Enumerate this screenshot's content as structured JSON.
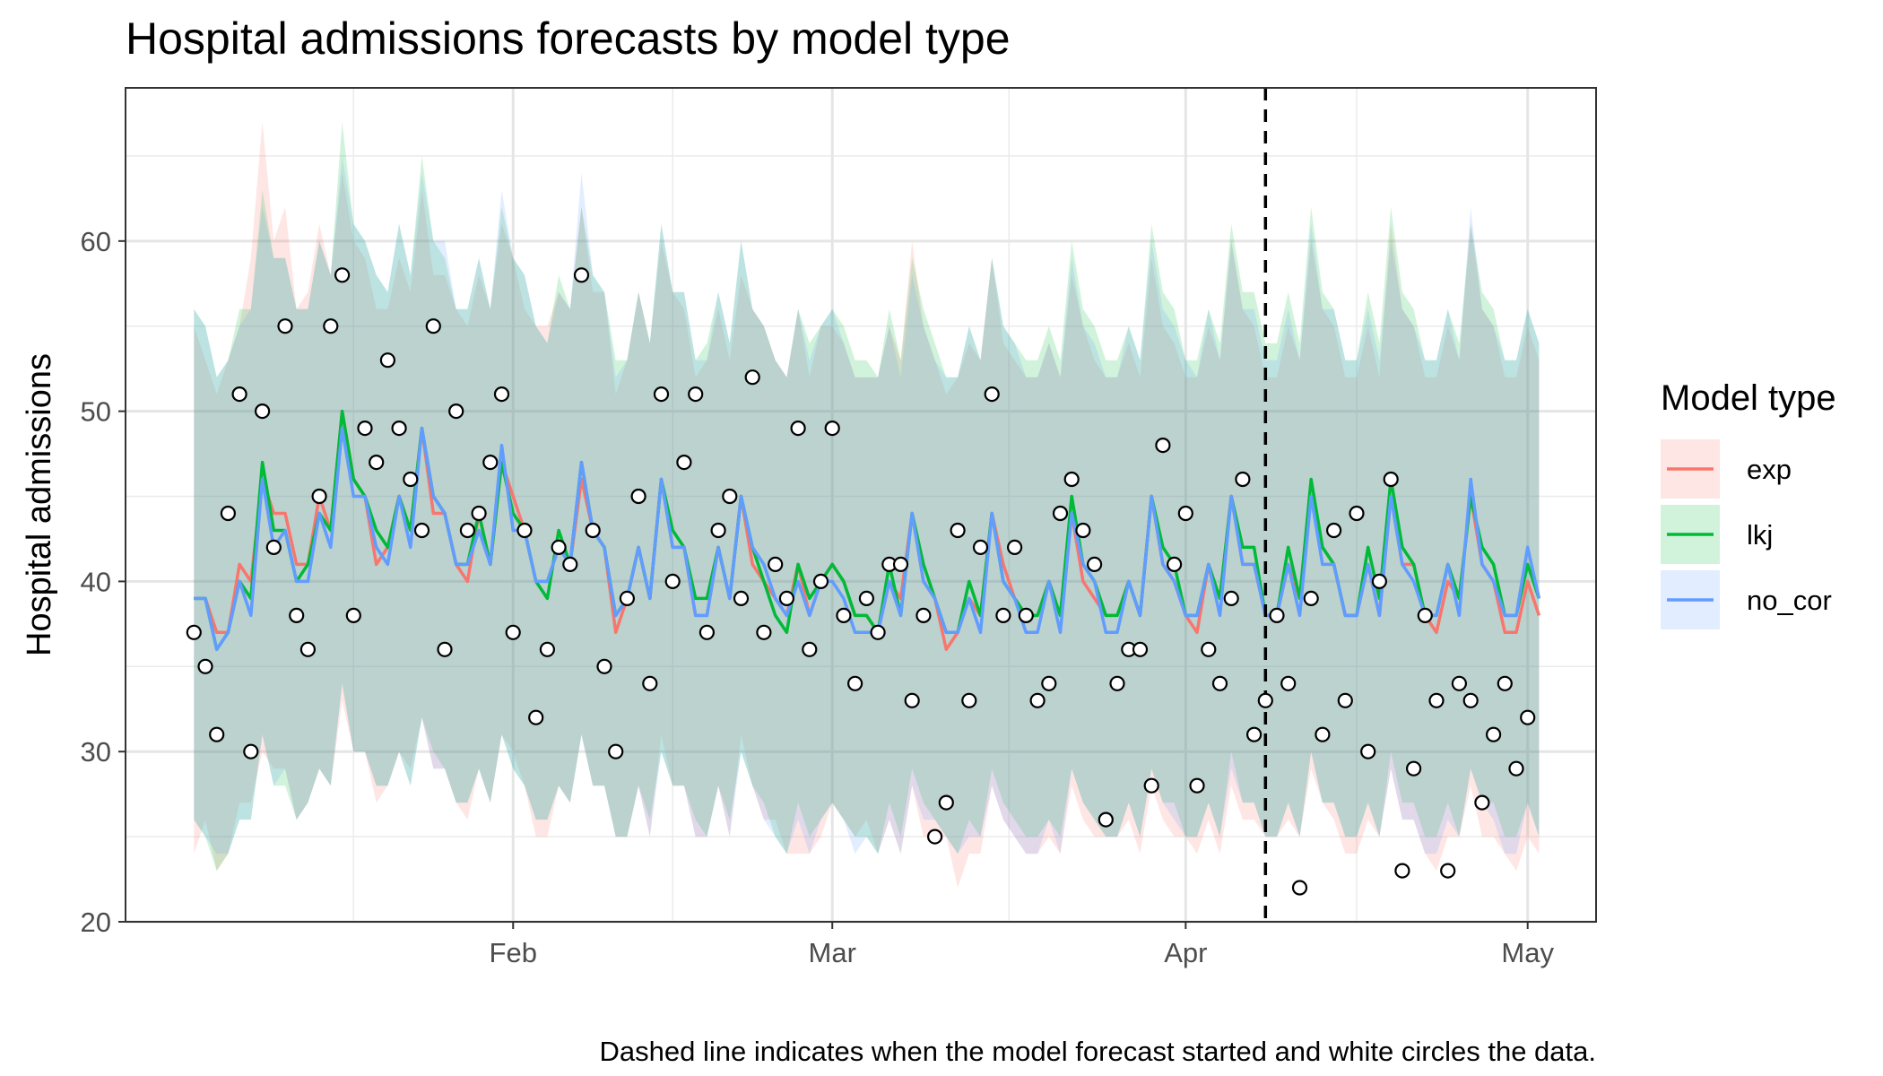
{
  "chart_data": {
    "type": "line",
    "title": "Hospital admissions forecasts by model type",
    "caption": "Dashed line indicates when the model forecast started and white circles the data.",
    "xlabel": "",
    "ylabel": "Hospital admissions",
    "x_start": "2021-01-04",
    "xlim": [
      "2020-12-29",
      "2021-05-07"
    ],
    "ylim": [
      20,
      69
    ],
    "x_ticks": [
      {
        "date": "2021-02-01",
        "label": "Feb"
      },
      {
        "date": "2021-03-01",
        "label": "Mar"
      },
      {
        "date": "2021-04-01",
        "label": "Apr"
      },
      {
        "date": "2021-05-01",
        "label": "May"
      }
    ],
    "y_ticks": [
      20,
      30,
      40,
      50,
      60
    ],
    "grid": true,
    "forecast_start": "2021-04-08",
    "legend": {
      "title": "Model type",
      "position": "right"
    },
    "observed": {
      "color": "#ffffff",
      "values": [
        37,
        35,
        31,
        44,
        51,
        30,
        50,
        42,
        55,
        38,
        36,
        45,
        55,
        58,
        38,
        49,
        47,
        53,
        49,
        46,
        43,
        55,
        36,
        50,
        43,
        44,
        47,
        51,
        37,
        43,
        32,
        36,
        42,
        41,
        58,
        43,
        35,
        30,
        39,
        45,
        34,
        51,
        40,
        47,
        51,
        37,
        43,
        45,
        39,
        52,
        37,
        41,
        39,
        49,
        36,
        40,
        49,
        38,
        34,
        39,
        37,
        41,
        41,
        33,
        38,
        25,
        27,
        43,
        33,
        42,
        51,
        38,
        42,
        38,
        33,
        34,
        44,
        46,
        43,
        41,
        26,
        34,
        36,
        36,
        28,
        48,
        41,
        44,
        28,
        36,
        34,
        39,
        46,
        31,
        33,
        38,
        34,
        22,
        39,
        31,
        43,
        33,
        44,
        30,
        40,
        46,
        23,
        29,
        38,
        33,
        23,
        34,
        33,
        27,
        31,
        34,
        29,
        32
      ]
    },
    "series": [
      {
        "name": "exp",
        "color": "#F8766D",
        "median": [
          39,
          39,
          37,
          37,
          41,
          40,
          46,
          44,
          44,
          41,
          41,
          45,
          43,
          50,
          46,
          45,
          41,
          42,
          45,
          43,
          49,
          44,
          44,
          41,
          40,
          44,
          41,
          47,
          45,
          43,
          40,
          40,
          42,
          41,
          46,
          43,
          42,
          37,
          39,
          42,
          39,
          46,
          42,
          42,
          38,
          38,
          42,
          39,
          45,
          41,
          40,
          39,
          38,
          41,
          38,
          40,
          41,
          40,
          38,
          38,
          37,
          40,
          39,
          44,
          40,
          39,
          36,
          37,
          39,
          38,
          44,
          41,
          39,
          38,
          38,
          40,
          38,
          44,
          40,
          39,
          38,
          38,
          40,
          38,
          45,
          41,
          40,
          38,
          37,
          41,
          39,
          45,
          41,
          41,
          38,
          38,
          41,
          39,
          45,
          42,
          41,
          38,
          38,
          41,
          38,
          45,
          41,
          41,
          38,
          37,
          40,
          39,
          45,
          41,
          40,
          37,
          37,
          40,
          38
        ],
        "lower": [
          24,
          26,
          23,
          24,
          27,
          27,
          30,
          29,
          29,
          26,
          27,
          29,
          28,
          33,
          30,
          30,
          27,
          28,
          30,
          29,
          32,
          29,
          29,
          27,
          26,
          29,
          27,
          31,
          30,
          28,
          25,
          25,
          28,
          27,
          31,
          28,
          28,
          25,
          25,
          28,
          25,
          31,
          28,
          28,
          25,
          25,
          28,
          25,
          31,
          28,
          26,
          26,
          24,
          24,
          24,
          25,
          27,
          26,
          25,
          26,
          24,
          26,
          24,
          28,
          25,
          25,
          25,
          22,
          24,
          24,
          28,
          26,
          25,
          24,
          24,
          25,
          24,
          28,
          26,
          25,
          25,
          25,
          26,
          24,
          28,
          26,
          25,
          25,
          24,
          26,
          24,
          28,
          26,
          26,
          25,
          25,
          26,
          25,
          29,
          27,
          26,
          24,
          24,
          26,
          25,
          29,
          26,
          26,
          24,
          23,
          25,
          25,
          28,
          25,
          25,
          24,
          23,
          25,
          24
        ],
        "upper": [
          55,
          53,
          51,
          53,
          55,
          59,
          67,
          60,
          62,
          56,
          57,
          61,
          58,
          64,
          60,
          59,
          56,
          56,
          59,
          57,
          63,
          58,
          58,
          56,
          55,
          58,
          56,
          61,
          59,
          56,
          55,
          55,
          57,
          56,
          62,
          57,
          57,
          51,
          53,
          57,
          54,
          60,
          57,
          56,
          52,
          53,
          56,
          53,
          58,
          56,
          55,
          53,
          52,
          56,
          52,
          55,
          55,
          54,
          52,
          52,
          52,
          55,
          53,
          60,
          55,
          53,
          51,
          52,
          54,
          53,
          59,
          54,
          53,
          52,
          52,
          54,
          52,
          58,
          55,
          53,
          52,
          52,
          54,
          52,
          59,
          55,
          54,
          52,
          52,
          55,
          53,
          60,
          56,
          55,
          52,
          52,
          55,
          53,
          60,
          56,
          55,
          52,
          52,
          55,
          52,
          61,
          56,
          55,
          52,
          52,
          55,
          53,
          61,
          56,
          55,
          52,
          52,
          55,
          53
        ]
      },
      {
        "name": "lkj",
        "color": "#00BA38",
        "median": [
          39,
          39,
          36,
          37,
          40,
          39,
          47,
          43,
          43,
          40,
          41,
          44,
          43,
          50,
          46,
          45,
          43,
          42,
          45,
          43,
          49,
          45,
          44,
          41,
          41,
          44,
          41,
          47,
          44,
          43,
          40,
          39,
          43,
          41,
          47,
          43,
          42,
          38,
          39,
          42,
          39,
          46,
          43,
          42,
          39,
          39,
          42,
          39,
          45,
          42,
          40,
          38,
          37,
          41,
          39,
          40,
          41,
          40,
          38,
          38,
          37,
          41,
          38,
          44,
          41,
          39,
          37,
          37,
          40,
          38,
          44,
          40,
          39,
          38,
          38,
          40,
          38,
          45,
          41,
          40,
          38,
          38,
          40,
          38,
          45,
          42,
          41,
          38,
          38,
          41,
          39,
          45,
          42,
          42,
          38,
          38,
          42,
          39,
          46,
          42,
          41,
          38,
          38,
          42,
          39,
          46,
          42,
          41,
          38,
          38,
          41,
          39,
          45,
          42,
          41,
          38,
          38,
          41,
          39
        ],
        "lower": [
          26,
          25,
          23,
          24,
          26,
          26,
          31,
          28,
          28,
          26,
          27,
          29,
          28,
          34,
          30,
          30,
          28,
          28,
          30,
          28,
          32,
          30,
          29,
          27,
          27,
          29,
          27,
          31,
          29,
          28,
          26,
          26,
          28,
          27,
          31,
          28,
          28,
          25,
          25,
          28,
          26,
          30,
          28,
          28,
          26,
          25,
          28,
          26,
          30,
          28,
          27,
          25,
          24,
          27,
          25,
          26,
          27,
          26,
          25,
          25,
          24,
          27,
          25,
          29,
          27,
          26,
          25,
          24,
          26,
          25,
          29,
          27,
          26,
          25,
          25,
          26,
          25,
          29,
          27,
          26,
          25,
          25,
          27,
          25,
          29,
          27,
          27,
          25,
          25,
          27,
          25,
          30,
          27,
          27,
          25,
          25,
          27,
          25,
          30,
          27,
          27,
          25,
          25,
          27,
          25,
          30,
          27,
          27,
          25,
          25,
          27,
          25,
          29,
          27,
          27,
          25,
          25,
          27,
          25
        ],
        "upper": [
          56,
          55,
          52,
          53,
          56,
          56,
          63,
          59,
          59,
          56,
          56,
          60,
          58,
          67,
          61,
          60,
          58,
          57,
          61,
          58,
          65,
          60,
          59,
          56,
          56,
          59,
          56,
          62,
          59,
          58,
          55,
          54,
          58,
          56,
          62,
          58,
          57,
          53,
          53,
          57,
          54,
          61,
          57,
          57,
          53,
          54,
          57,
          54,
          60,
          56,
          55,
          53,
          52,
          56,
          54,
          55,
          56,
          55,
          53,
          53,
          52,
          56,
          53,
          59,
          56,
          54,
          52,
          52,
          55,
          53,
          59,
          55,
          54,
          53,
          53,
          55,
          53,
          60,
          56,
          55,
          53,
          53,
          55,
          53,
          61,
          57,
          56,
          53,
          53,
          56,
          54,
          61,
          57,
          57,
          54,
          54,
          57,
          54,
          62,
          57,
          56,
          53,
          53,
          57,
          54,
          62,
          57,
          56,
          53,
          53,
          56,
          54,
          61,
          57,
          56,
          53,
          53,
          56,
          54
        ]
      },
      {
        "name": "no_cor",
        "color": "#619CFF",
        "median": [
          39,
          39,
          36,
          37,
          40,
          38,
          46,
          42,
          43,
          40,
          40,
          44,
          42,
          49,
          45,
          45,
          42,
          41,
          45,
          42,
          49,
          45,
          44,
          41,
          41,
          43,
          41,
          48,
          43,
          43,
          40,
          40,
          42,
          41,
          47,
          43,
          42,
          38,
          39,
          42,
          39,
          46,
          42,
          42,
          38,
          38,
          42,
          39,
          45,
          42,
          41,
          39,
          38,
          40,
          38,
          40,
          40,
          39,
          37,
          37,
          37,
          40,
          38,
          44,
          40,
          39,
          37,
          37,
          39,
          37,
          44,
          40,
          39,
          37,
          37,
          40,
          37,
          44,
          41,
          40,
          37,
          37,
          40,
          38,
          45,
          41,
          40,
          38,
          38,
          41,
          38,
          45,
          41,
          41,
          38,
          38,
          41,
          38,
          45,
          41,
          41,
          38,
          38,
          41,
          38,
          45,
          41,
          40,
          38,
          38,
          41,
          38,
          46,
          41,
          40,
          38,
          38,
          42,
          39
        ],
        "lower": [
          26,
          25,
          24,
          24,
          26,
          26,
          31,
          28,
          29,
          26,
          27,
          29,
          28,
          34,
          30,
          30,
          28,
          28,
          30,
          28,
          32,
          29,
          29,
          27,
          27,
          29,
          27,
          31,
          29,
          28,
          26,
          26,
          28,
          27,
          31,
          28,
          28,
          25,
          25,
          28,
          25,
          30,
          28,
          28,
          25,
          25,
          28,
          25,
          30,
          28,
          26,
          25,
          24,
          26,
          24,
          26,
          27,
          26,
          24,
          25,
          24,
          26,
          24,
          28,
          26,
          26,
          25,
          24,
          25,
          25,
          28,
          26,
          25,
          24,
          24,
          26,
          24,
          29,
          27,
          26,
          25,
          25,
          27,
          25,
          29,
          27,
          26,
          25,
          25,
          27,
          25,
          29,
          27,
          27,
          25,
          25,
          27,
          25,
          30,
          27,
          27,
          25,
          25,
          27,
          25,
          29,
          26,
          26,
          24,
          24,
          26,
          25,
          29,
          27,
          26,
          24,
          24,
          27,
          25
        ],
        "upper": [
          56,
          55,
          52,
          53,
          55,
          56,
          62,
          59,
          59,
          56,
          56,
          60,
          58,
          65,
          61,
          60,
          58,
          57,
          61,
          58,
          64,
          60,
          60,
          56,
          56,
          59,
          56,
          63,
          59,
          58,
          55,
          54,
          57,
          56,
          64,
          58,
          57,
          52,
          53,
          57,
          54,
          61,
          57,
          57,
          53,
          53,
          57,
          54,
          60,
          56,
          55,
          53,
          52,
          56,
          53,
          55,
          56,
          54,
          52,
          52,
          52,
          55,
          52,
          58,
          55,
          53,
          52,
          52,
          55,
          53,
          59,
          55,
          54,
          52,
          52,
          54,
          52,
          59,
          55,
          54,
          52,
          52,
          55,
          53,
          60,
          56,
          55,
          53,
          52,
          56,
          53,
          60,
          56,
          56,
          53,
          53,
          56,
          53,
          61,
          56,
          56,
          53,
          53,
          56,
          53,
          60,
          56,
          55,
          53,
          53,
          56,
          53,
          62,
          56,
          55,
          53,
          53,
          56,
          54
        ]
      }
    ]
  }
}
